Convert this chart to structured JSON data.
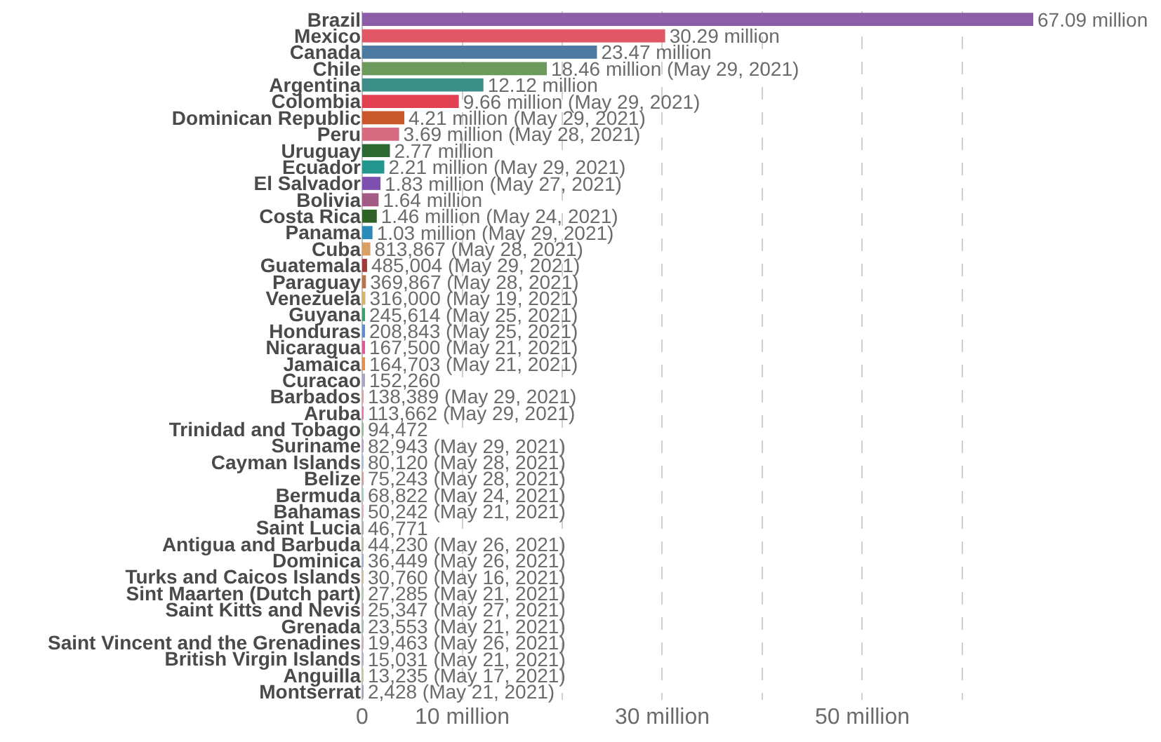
{
  "chart_data": {
    "type": "bar",
    "orientation": "horizontal",
    "categories": [
      "Brazil",
      "Mexico",
      "Canada",
      "Chile",
      "Argentina",
      "Colombia",
      "Dominican Republic",
      "Peru",
      "Uruguay",
      "Ecuador",
      "El Salvador",
      "Bolivia",
      "Costa Rica",
      "Panama",
      "Cuba",
      "Guatemala",
      "Paraguay",
      "Venezuela",
      "Guyana",
      "Honduras",
      "Nicaragua",
      "Jamaica",
      "Curacao",
      "Barbados",
      "Aruba",
      "Trinidad and Tobago",
      "Suriname",
      "Cayman Islands",
      "Belize",
      "Bermuda",
      "Bahamas",
      "Saint Lucia",
      "Antigua and Barbuda",
      "Dominica",
      "Turks and Caicos Islands",
      "Sint Maarten (Dutch part)",
      "Saint Kitts and Nevis",
      "Grenada",
      "Saint Vincent and the Grenadines",
      "British Virgin Islands",
      "Anguilla",
      "Montserrat"
    ],
    "values": [
      67090000,
      30290000,
      23470000,
      18460000,
      12120000,
      9660000,
      4210000,
      3690000,
      2770000,
      2210000,
      1830000,
      1640000,
      1460000,
      1030000,
      813867,
      485004,
      369867,
      316000,
      245614,
      208843,
      167500,
      164703,
      152260,
      138389,
      113662,
      94472,
      82943,
      80120,
      75243,
      68822,
      50242,
      46771,
      44230,
      36449,
      30760,
      27285,
      25347,
      23553,
      19463,
      15031,
      13235,
      2428
    ],
    "value_labels": [
      "67.09 million",
      "30.29 million",
      "23.47 million",
      "18.46 million (May 29, 2021)",
      "12.12 million",
      "9.66 million (May 29, 2021)",
      "4.21 million (May 29, 2021)",
      "3.69 million (May 28, 2021)",
      "2.77 million",
      "2.21 million (May 29, 2021)",
      "1.83 million (May 27, 2021)",
      "1.64 million",
      "1.46 million (May 24, 2021)",
      "1.03 million (May 29, 2021)",
      "813,867 (May 28, 2021)",
      "485,004 (May 29, 2021)",
      "369,867 (May 28, 2021)",
      "316,000 (May 19, 2021)",
      "245,614 (May 25, 2021)",
      "208,843 (May 25, 2021)",
      "167,500 (May 21, 2021)",
      "164,703 (May 21, 2021)",
      "152,260",
      "138,389 (May 29, 2021)",
      "113,662 (May 29, 2021)",
      "94,472",
      "82,943 (May 29, 2021)",
      "80,120 (May 28, 2021)",
      "75,243 (May 28, 2021)",
      "68,822 (May 24, 2021)",
      "50,242 (May 21, 2021)",
      "46,771",
      "44,230 (May 26, 2021)",
      "36,449 (May 26, 2021)",
      "30,760 (May 16, 2021)",
      "27,285 (May 21, 2021)",
      "25,347 (May 27, 2021)",
      "23,553 (May 21, 2021)",
      "19,463 (May 26, 2021)",
      "15,031 (May 21, 2021)",
      "13,235 (May 17, 2021)",
      "2,428 (May 21, 2021)"
    ],
    "colors": [
      "#8c5ea8",
      "#e15766",
      "#4c7aa1",
      "#6b9a5c",
      "#3b8f87",
      "#e0404f",
      "#c8582a",
      "#d66b82",
      "#2d6a33",
      "#23968e",
      "#7f4fb0",
      "#a35a84",
      "#2f6226",
      "#2a8ab8",
      "#d9a066",
      "#a03a3a",
      "#b9724a",
      "#d8b36a",
      "#3aa06c",
      "#5c8fd0",
      "#e05a9a",
      "#e6904a",
      "#a8a8c0",
      "#e0a0a0",
      "#e070b0",
      "#90c090",
      "#c0a0d0",
      "#a0c0e0",
      "#d0a090",
      "#a0d0c0",
      "#e0b0c0",
      "#b0b0b0",
      "#c0c0a0",
      "#a0b0d0",
      "#d0c0a0",
      "#b0d0b0",
      "#c0a0b0",
      "#a0c0c0",
      "#d0b0b0",
      "#b0b0d0",
      "#c0d0a0",
      "#a0a0c0"
    ],
    "xlim": [
      0,
      67090000
    ],
    "xticks": [
      0,
      {
        "value": 10000000,
        "label": "10 million"
      },
      {
        "value": 20000000,
        "label": null
      },
      {
        "value": 30000000,
        "label": "30 million"
      },
      {
        "value": 40000000,
        "label": null
      },
      {
        "value": 50000000,
        "label": "50 million"
      },
      {
        "value": 60000000,
        "label": null
      }
    ],
    "grid": "x",
    "legend": false
  }
}
